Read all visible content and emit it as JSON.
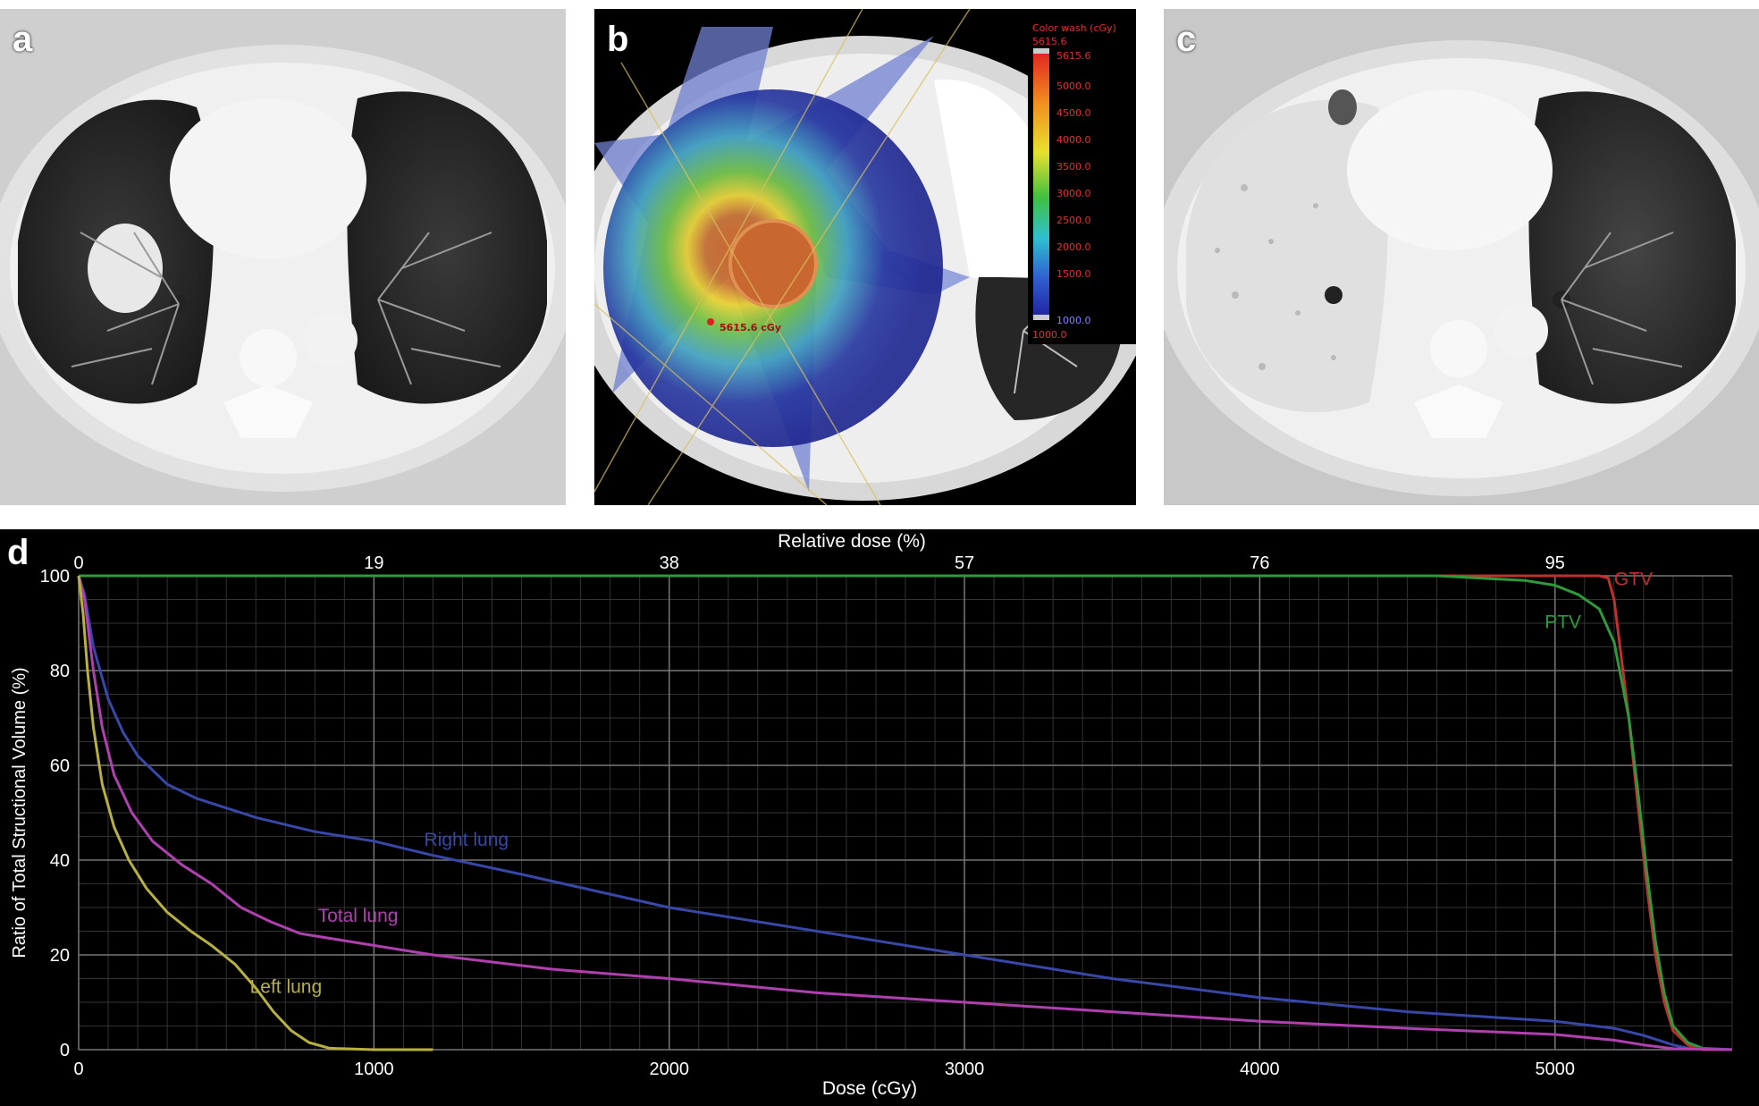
{
  "panels": {
    "a": {
      "letter": "a"
    },
    "b": {
      "letter": "b",
      "color_wash": {
        "title": "Color wash (cGy)",
        "max_top": "5615.6",
        "max_label": "5615.6",
        "ticks": [
          "5000.0",
          "4500.0",
          "4000.0",
          "3500.0",
          "3000.0",
          "2500.0",
          "2000.0",
          "1500.0"
        ],
        "min_label": "1000.0",
        "min_bottom": "1000.0",
        "point_label": "5615.6 cGy"
      }
    },
    "c": {
      "letter": "c"
    },
    "d": {
      "letter": "d"
    }
  },
  "chart_data": {
    "type": "line",
    "xlabel": "Dose (cGy)",
    "x2label": "Relative dose (%)",
    "ylabel": "Ratio of Total Structional Volume (%)",
    "xlim": [
      0,
      5600
    ],
    "ylim": [
      0,
      100
    ],
    "xticks": [
      0,
      1000,
      2000,
      3000,
      4000,
      5000
    ],
    "x2ticks": [
      {
        "label": "0",
        "dose": 0
      },
      {
        "label": "19",
        "dose": 1000
      },
      {
        "label": "38",
        "dose": 2000
      },
      {
        "label": "57",
        "dose": 3000
      },
      {
        "label": "76",
        "dose": 4000
      },
      {
        "label": "95",
        "dose": 5000
      }
    ],
    "yticks": [
      0,
      20,
      40,
      60,
      80,
      100
    ],
    "grid": true,
    "series": [
      {
        "name": "GTV",
        "color": "#c03030",
        "label_at": [
          5200,
          98
        ],
        "points": [
          [
            0,
            100
          ],
          [
            5150,
            100
          ],
          [
            5180,
            99.5
          ],
          [
            5200,
            95
          ],
          [
            5220,
            85
          ],
          [
            5250,
            70
          ],
          [
            5280,
            52
          ],
          [
            5310,
            35
          ],
          [
            5340,
            20
          ],
          [
            5370,
            10
          ],
          [
            5400,
            4
          ],
          [
            5450,
            1
          ],
          [
            5500,
            0
          ],
          [
            5600,
            0
          ]
        ]
      },
      {
        "name": "PTV",
        "color": "#2e9a3a",
        "label_at": [
          4965,
          89
        ],
        "points": [
          [
            0,
            100
          ],
          [
            4600,
            100
          ],
          [
            4900,
            99
          ],
          [
            5000,
            98
          ],
          [
            5080,
            96
          ],
          [
            5150,
            93
          ],
          [
            5200,
            86
          ],
          [
            5250,
            70
          ],
          [
            5280,
            55
          ],
          [
            5310,
            38
          ],
          [
            5340,
            23
          ],
          [
            5370,
            12
          ],
          [
            5400,
            5
          ],
          [
            5450,
            1.5
          ],
          [
            5500,
            0.3
          ],
          [
            5600,
            0
          ]
        ]
      },
      {
        "name": "Right lung",
        "color": "#3848a8",
        "label_at": [
          1170,
          43
        ],
        "points": [
          [
            0,
            100
          ],
          [
            20,
            96
          ],
          [
            50,
            85
          ],
          [
            100,
            74
          ],
          [
            150,
            67
          ],
          [
            200,
            62
          ],
          [
            300,
            56
          ],
          [
            400,
            53
          ],
          [
            600,
            49
          ],
          [
            800,
            46
          ],
          [
            1000,
            44
          ],
          [
            1200,
            41
          ],
          [
            1500,
            37
          ],
          [
            2000,
            30
          ],
          [
            2500,
            25
          ],
          [
            3000,
            20
          ],
          [
            3500,
            15
          ],
          [
            4000,
            11
          ],
          [
            4500,
            8
          ],
          [
            5000,
            6
          ],
          [
            5200,
            4.5
          ],
          [
            5300,
            3
          ],
          [
            5400,
            1
          ],
          [
            5450,
            0.3
          ],
          [
            5600,
            0
          ]
        ]
      },
      {
        "name": "Total lung",
        "color": "#b040b0",
        "label_at": [
          810,
          27
        ],
        "points": [
          [
            0,
            100
          ],
          [
            20,
            95
          ],
          [
            50,
            80
          ],
          [
            80,
            68
          ],
          [
            120,
            58
          ],
          [
            180,
            50
          ],
          [
            250,
            44
          ],
          [
            350,
            39
          ],
          [
            450,
            35
          ],
          [
            550,
            30
          ],
          [
            650,
            27
          ],
          [
            750,
            24.5
          ],
          [
            900,
            23
          ],
          [
            1200,
            20
          ],
          [
            1600,
            17
          ],
          [
            2000,
            15
          ],
          [
            2500,
            12
          ],
          [
            3000,
            10
          ],
          [
            3500,
            8
          ],
          [
            4000,
            6
          ],
          [
            4500,
            4.5
          ],
          [
            5000,
            3.2
          ],
          [
            5200,
            2
          ],
          [
            5300,
            1
          ],
          [
            5400,
            0.2
          ],
          [
            5600,
            0
          ]
        ]
      },
      {
        "name": "Left lung",
        "color": "#b8b040",
        "label_at": [
          580,
          12
        ],
        "points": [
          [
            0,
            100
          ],
          [
            15,
            92
          ],
          [
            30,
            80
          ],
          [
            50,
            68
          ],
          [
            80,
            56
          ],
          [
            120,
            47
          ],
          [
            170,
            40
          ],
          [
            230,
            34
          ],
          [
            300,
            29
          ],
          [
            380,
            25
          ],
          [
            450,
            22
          ],
          [
            530,
            18
          ],
          [
            600,
            13
          ],
          [
            660,
            8
          ],
          [
            720,
            4
          ],
          [
            780,
            1.5
          ],
          [
            850,
            0.3
          ],
          [
            1000,
            0
          ],
          [
            1200,
            0
          ]
        ]
      }
    ]
  }
}
